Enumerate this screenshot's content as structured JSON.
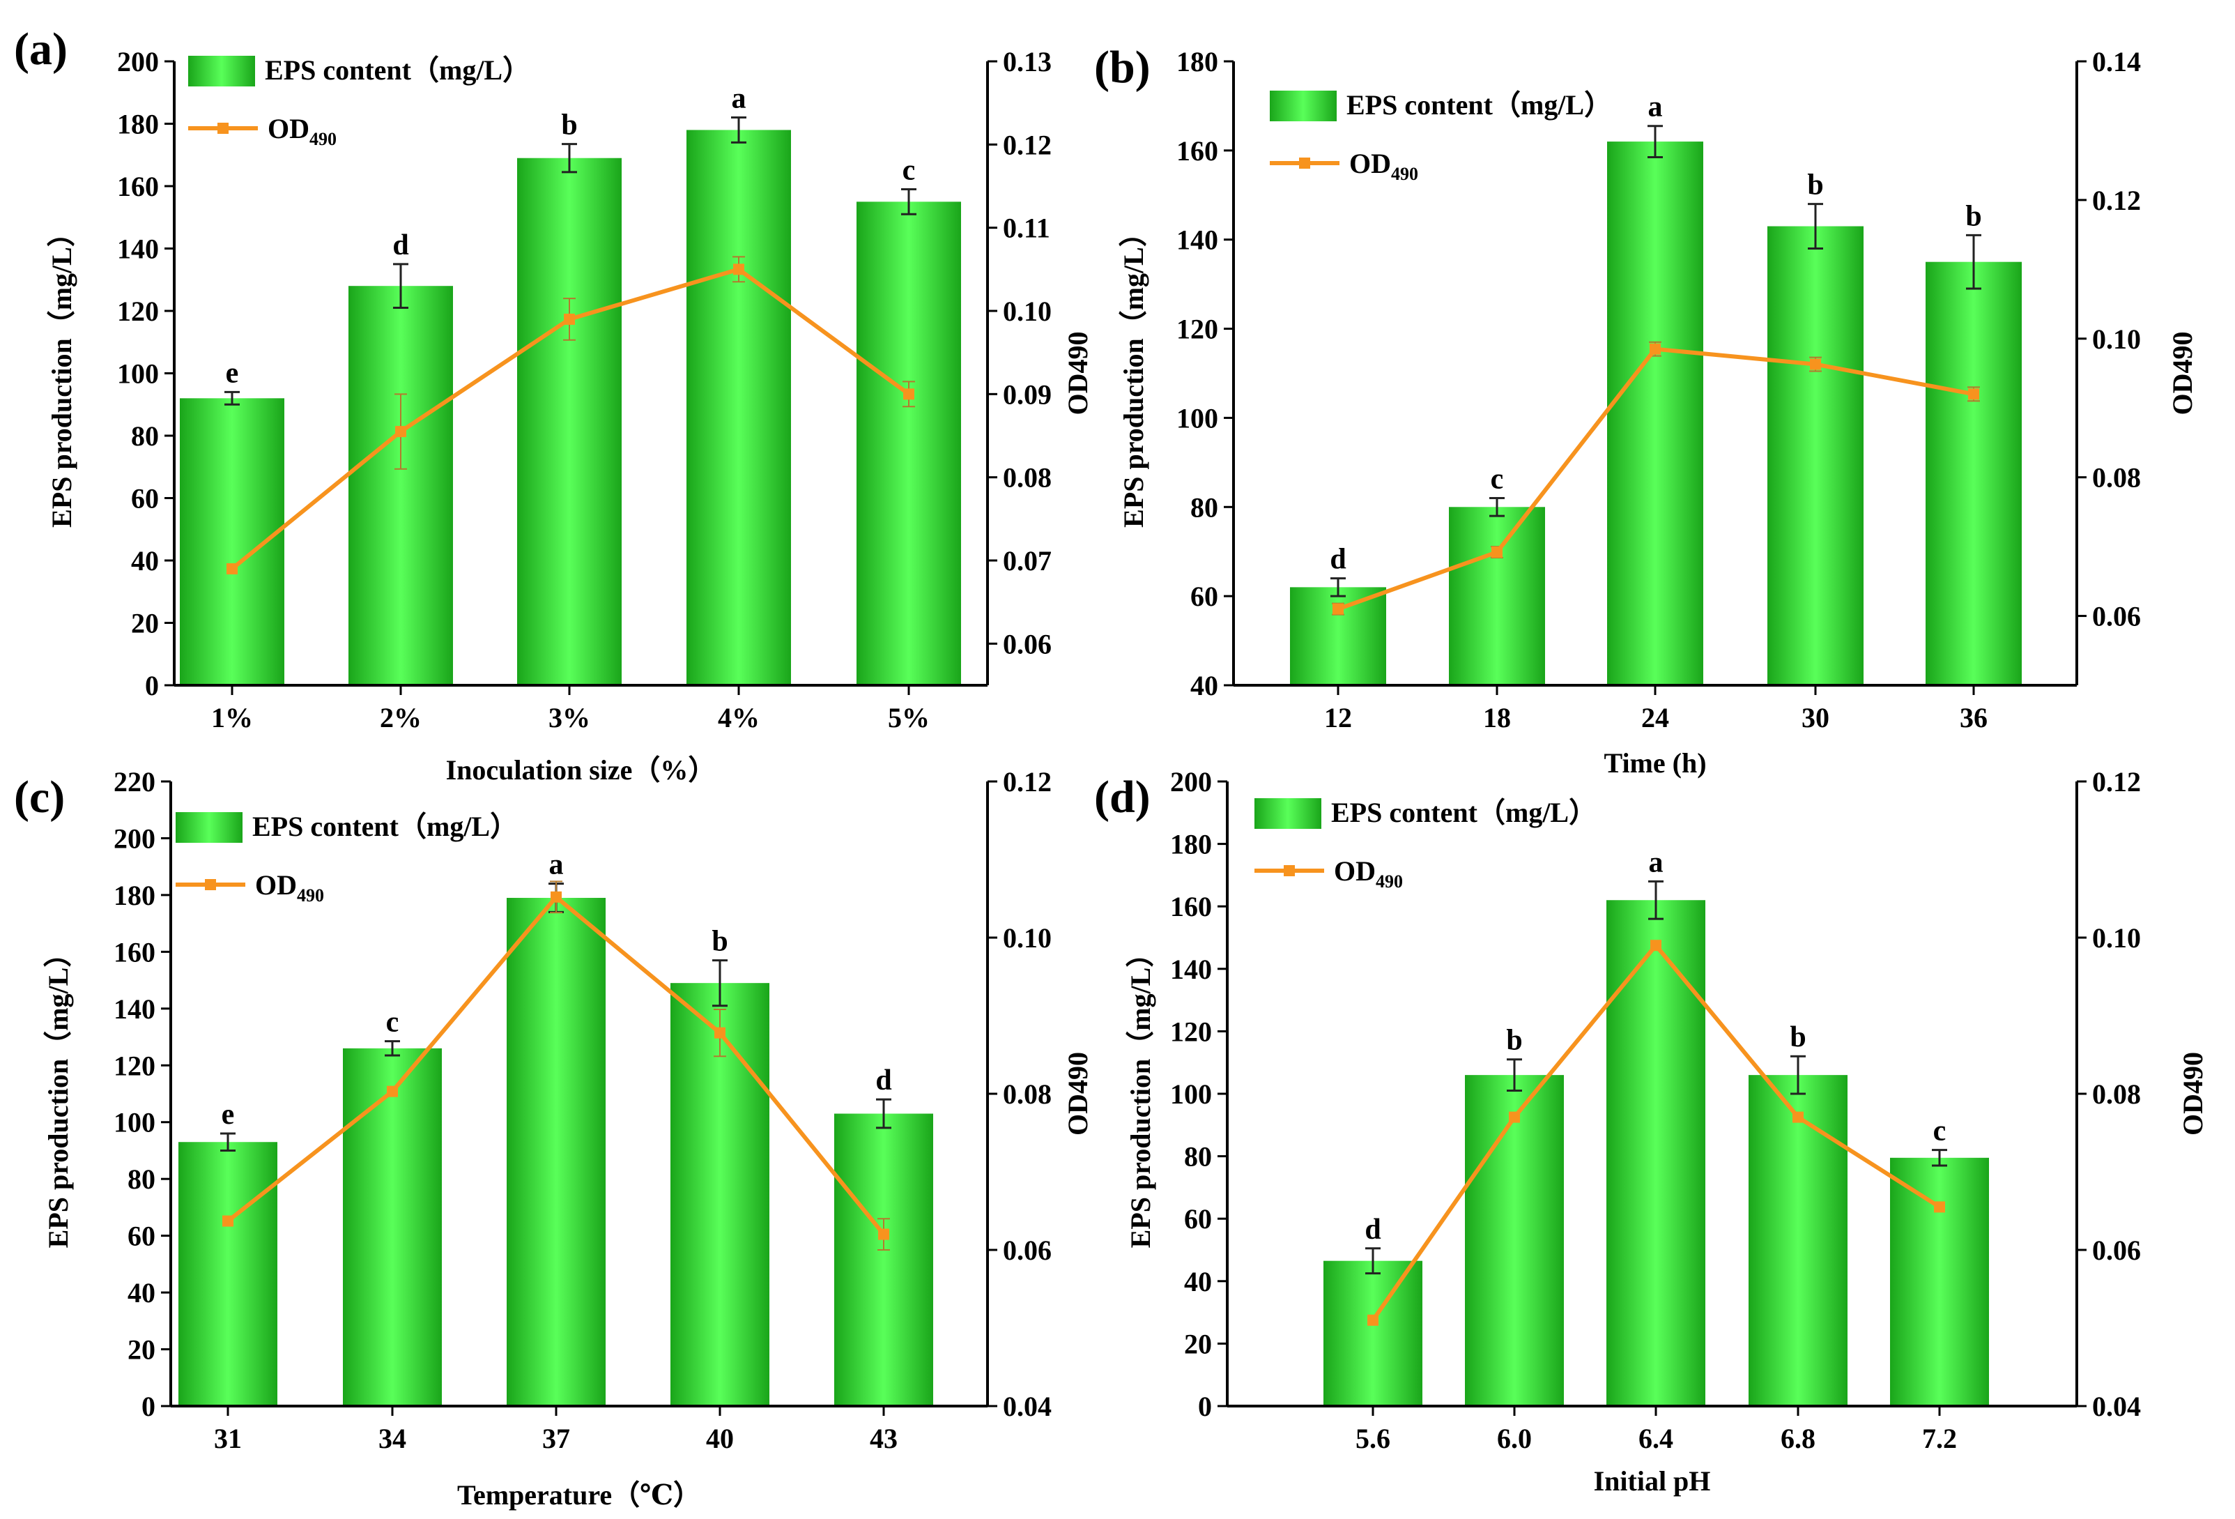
{
  "colors": {
    "bar_edge": "#1aa51a",
    "bar_mid": "#59ff59",
    "line": "#f7931e",
    "marker": "#f7931e"
  },
  "chart_data": [
    {
      "panel": "(a)",
      "type": "bar",
      "secondary_type": "line",
      "xlabel": "Inoculation size（%）",
      "ylabel": "EPS production（mg/L）",
      "y2label": "OD490",
      "legend": {
        "bar": "EPS content（mg/L）",
        "line_main": "OD",
        "line_sub": "490",
        "placement": "top-left"
      },
      "categories": [
        "1%",
        "2%",
        "3%",
        "4%",
        "5%"
      ],
      "ylim": [
        0,
        200
      ],
      "yticks": [
        "0",
        "20",
        "40",
        "60",
        "80",
        "100",
        "120",
        "140",
        "160",
        "180",
        "200"
      ],
      "y2lim": [
        0.055,
        0.13
      ],
      "y2ticks": [
        "0.06",
        "0.07",
        "0.08",
        "0.09",
        "0.10",
        "0.11",
        "0.12",
        "0.13"
      ],
      "y2tick_values": [
        0.06,
        0.07,
        0.08,
        0.09,
        0.1,
        0.11,
        0.12,
        0.13
      ],
      "series": [
        {
          "name": "EPS content（mg/L）",
          "kind": "bar",
          "values": [
            92,
            128,
            169,
            178,
            155
          ],
          "errors": [
            2,
            7,
            4.5,
            4,
            4
          ],
          "letters": [
            "e",
            "d",
            "b",
            "a",
            "c"
          ]
        },
        {
          "name": "OD490",
          "kind": "line",
          "values": [
            0.069,
            0.0855,
            0.099,
            0.105,
            0.09
          ],
          "errors": [
            0,
            0.0045,
            0.0025,
            0.0015,
            0.0015
          ]
        }
      ]
    },
    {
      "panel": "(b)",
      "type": "bar",
      "secondary_type": "line",
      "xlabel": "Time (h)",
      "ylabel": "EPS production（mg/L）",
      "y2label": "OD490",
      "legend": {
        "bar": "EPS content（mg/L）",
        "line_main": "OD",
        "line_sub": "490",
        "placement": "top-left"
      },
      "categories": [
        "12",
        "18",
        "24",
        "30",
        "36"
      ],
      "ylim": [
        40,
        180
      ],
      "yticks": [
        "40",
        "60",
        "80",
        "100",
        "120",
        "140",
        "160",
        "180"
      ],
      "y2lim": [
        0.05,
        0.14
      ],
      "y2ticks": [
        "0.06",
        "0.08",
        "0.10",
        "0.12",
        "0.14"
      ],
      "y2tick_values": [
        0.06,
        0.08,
        0.1,
        0.12,
        0.14
      ],
      "series": [
        {
          "name": "EPS content（mg/L）",
          "kind": "bar",
          "values": [
            62,
            80,
            162,
            143,
            135
          ],
          "errors": [
            2,
            2,
            3.5,
            5,
            6
          ],
          "letters": [
            "d",
            "c",
            "a",
            "b",
            "b"
          ]
        },
        {
          "name": "OD490",
          "kind": "line",
          "values": [
            0.061,
            0.0692,
            0.0985,
            0.0963,
            0.092
          ],
          "errors": [
            0.0008,
            0.0008,
            0.001,
            0.001,
            0.001
          ]
        }
      ]
    },
    {
      "panel": "(c)",
      "type": "bar",
      "secondary_type": "line",
      "xlabel": "Temperature（℃）",
      "ylabel": "EPS production（mg/L）",
      "y2label": "OD490",
      "legend": {
        "bar": "EPS content（mg/L）",
        "line_main": "OD",
        "line_sub": "490",
        "placement": "top-left"
      },
      "categories": [
        "31",
        "34",
        "37",
        "40",
        "43"
      ],
      "ylim": [
        0,
        220
      ],
      "yticks": [
        "0",
        "20",
        "40",
        "60",
        "80",
        "100",
        "120",
        "140",
        "160",
        "180",
        "200",
        "220"
      ],
      "y2lim": [
        0.04,
        0.12
      ],
      "y2ticks": [
        "0.04",
        "0.06",
        "0.08",
        "0.10",
        "0.12"
      ],
      "y2tick_values": [
        0.04,
        0.06,
        0.08,
        0.1,
        0.12
      ],
      "series": [
        {
          "name": "EPS content（mg/L）",
          "kind": "bar",
          "values": [
            93,
            126,
            179,
            149,
            103
          ],
          "errors": [
            3,
            2.5,
            5,
            8,
            5
          ],
          "letters": [
            "e",
            "c",
            "a",
            "b",
            "d"
          ]
        },
        {
          "name": "OD490",
          "kind": "line",
          "values": [
            0.0637,
            0.0803,
            0.1052,
            0.0878,
            0.062
          ],
          "errors": [
            0,
            0,
            0.002,
            0.003,
            0.002
          ]
        }
      ]
    },
    {
      "panel": "(d)",
      "type": "bar",
      "secondary_type": "line",
      "xlabel": "Initial pH",
      "ylabel": "EPS production（mg/L）",
      "y2label": "OD490",
      "legend": {
        "bar": "EPS content（mg/L）",
        "line_main": "OD",
        "line_sub": "490",
        "placement": "top-left"
      },
      "categories": [
        "5.6",
        "6.0",
        "6.4",
        "6.8",
        "7.2"
      ],
      "ylim": [
        0,
        200
      ],
      "yticks": [
        "0",
        "20",
        "40",
        "60",
        "80",
        "100",
        "120",
        "140",
        "160",
        "180",
        "200"
      ],
      "y2lim": [
        0.04,
        0.12
      ],
      "y2ticks": [
        "0.04",
        "0.06",
        "0.08",
        "0.10",
        "0.12"
      ],
      "y2tick_values": [
        0.04,
        0.06,
        0.08,
        0.1,
        0.12
      ],
      "series": [
        {
          "name": "EPS content（mg/L）",
          "kind": "bar",
          "values": [
            46.5,
            106,
            162,
            106,
            79.5
          ],
          "errors": [
            4,
            5,
            6,
            6,
            2.5
          ],
          "letters": [
            "d",
            "b",
            "a",
            "b",
            "c"
          ]
        },
        {
          "name": "OD490",
          "kind": "line",
          "values": [
            0.051,
            0.077,
            0.099,
            0.077,
            0.0655
          ],
          "errors": [
            0,
            0,
            0,
            0,
            0
          ]
        }
      ]
    }
  ]
}
